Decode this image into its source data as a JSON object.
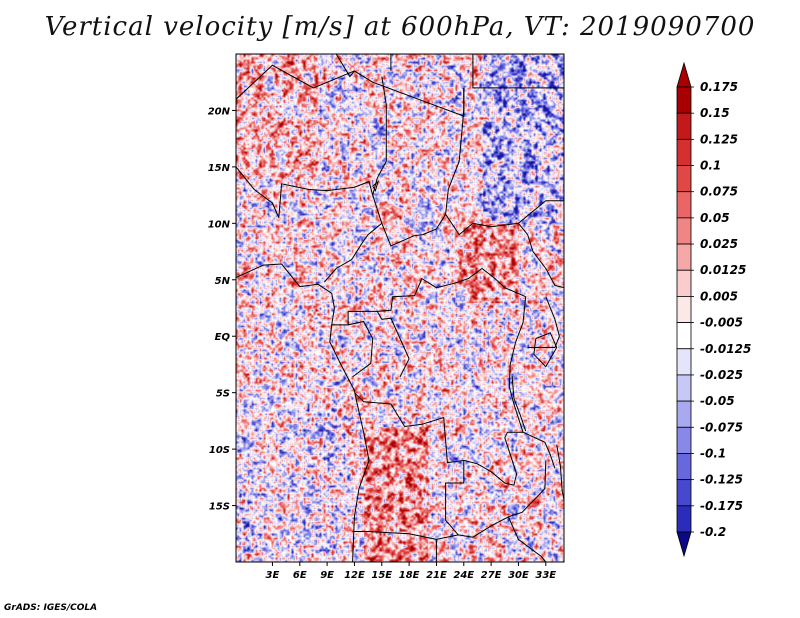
{
  "title": "Vertical velocity [m/s] at 600hPa, VT: 2019090700",
  "credit": "GrADS: IGES/COLA",
  "map": {
    "lon_range": [
      -1,
      35
    ],
    "lat_range": [
      -20,
      25
    ],
    "lat_ticks": [
      {
        "value": 20,
        "label": "20N"
      },
      {
        "value": 15,
        "label": "15N"
      },
      {
        "value": 10,
        "label": "10N"
      },
      {
        "value": 5,
        "label": "5N"
      },
      {
        "value": 0,
        "label": "EQ"
      },
      {
        "value": -5,
        "label": "5S"
      },
      {
        "value": -10,
        "label": "10S"
      },
      {
        "value": -15,
        "label": "15S"
      }
    ],
    "lon_ticks": [
      {
        "value": 3,
        "label": "3E"
      },
      {
        "value": 6,
        "label": "6E"
      },
      {
        "value": 9,
        "label": "9E"
      },
      {
        "value": 12,
        "label": "12E"
      },
      {
        "value": 15,
        "label": "15E"
      },
      {
        "value": 18,
        "label": "18E"
      },
      {
        "value": 21,
        "label": "21E"
      },
      {
        "value": 24,
        "label": "24E"
      },
      {
        "value": 27,
        "label": "27E"
      },
      {
        "value": 30,
        "label": "30E"
      },
      {
        "value": 33,
        "label": "33E"
      }
    ],
    "field_seed": 20190907
  },
  "colorbar": {
    "levels": [
      {
        "label": "0.175",
        "color": "#a80000"
      },
      {
        "label": "0.15",
        "color": "#c21a1a"
      },
      {
        "label": "0.125",
        "color": "#d43030"
      },
      {
        "label": "0.1",
        "color": "#e04848"
      },
      {
        "label": "0.075",
        "color": "#ea6565"
      },
      {
        "label": "0.05",
        "color": "#f08585"
      },
      {
        "label": "0.025",
        "color": "#f6a8a8"
      },
      {
        "label": "0.0125",
        "color": "#fbcccc"
      },
      {
        "label": "0.005",
        "color": "#fde8e8"
      },
      {
        "label": "-0.005",
        "color": "#ffffff"
      },
      {
        "label": "-0.0125",
        "color": "#e4e4fb"
      },
      {
        "label": "-0.025",
        "color": "#c8c8f6"
      },
      {
        "label": "-0.05",
        "color": "#a9a9f0"
      },
      {
        "label": "-0.075",
        "color": "#8888e8"
      },
      {
        "label": "-0.1",
        "color": "#6868dd"
      },
      {
        "label": "-0.125",
        "color": "#4848cf"
      },
      {
        "label": "-0.175",
        "color": "#2c2cbb"
      },
      {
        "label": "-0.2",
        "color": "#14149e"
      }
    ],
    "bottom_color": "#0a0a88",
    "top_color": "#a80000"
  }
}
